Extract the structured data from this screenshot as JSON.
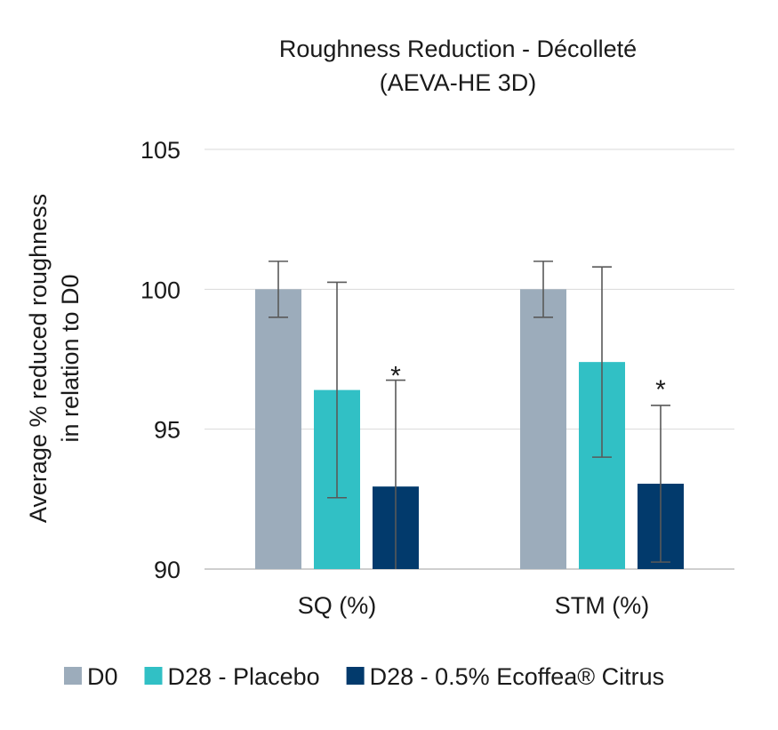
{
  "chart_data": {
    "type": "bar",
    "title_line1": "Roughness Reduction - Décolleté",
    "title_line2": "(AEVA-HE 3D)",
    "ylabel_line1": "Average % reduced roughness",
    "ylabel_line2": "in relation to D0",
    "xlabel": "",
    "ylim": [
      90,
      105
    ],
    "yticks": [
      90,
      95,
      100,
      105
    ],
    "grid": true,
    "legend_position": "bottom",
    "categories": [
      "SQ (%)",
      "STM (%)"
    ],
    "series": [
      {
        "name": "D0",
        "color": "#9cacbb",
        "values": [
          100,
          100
        ],
        "errors": [
          1.0,
          1.0
        ]
      },
      {
        "name": "D28 - Placebo",
        "color": "#31c0c5",
        "values": [
          96.4,
          97.4
        ],
        "errors": [
          3.85,
          3.4
        ]
      },
      {
        "name": "D28 - 0.5% Ecoffea® Citrus",
        "color": "#023a6c",
        "values": [
          92.95,
          93.05
        ],
        "errors": [
          3.8,
          2.8
        ]
      }
    ],
    "annotations": [
      {
        "text": "*",
        "category_index": 0,
        "series_index": 2,
        "y": 97.3
      },
      {
        "text": "*",
        "category_index": 1,
        "series_index": 2,
        "y": 96.8
      }
    ]
  }
}
